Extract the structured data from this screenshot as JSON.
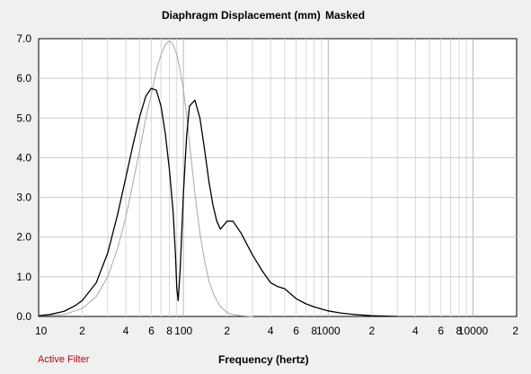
{
  "chart_data": {
    "type": "line",
    "title": "Diaphragm Displacement (mm)",
    "title_suffix": "Masked",
    "xlabel": "Frequency (hertz)",
    "ylabel": "",
    "xscale": "log",
    "xlim": [
      10,
      20000
    ],
    "ylim": [
      0,
      7
    ],
    "grid": true,
    "y_ticks": [
      {
        "value": 0,
        "label": "0.0"
      },
      {
        "value": 1,
        "label": "1.0"
      },
      {
        "value": 2,
        "label": "2.0"
      },
      {
        "value": 3,
        "label": "3.0"
      },
      {
        "value": 4,
        "label": "4.0"
      },
      {
        "value": 5,
        "label": "5.0"
      },
      {
        "value": 6,
        "label": "6.0"
      },
      {
        "value": 7,
        "label": "7.0"
      }
    ],
    "x_ticks": [
      {
        "value": 10,
        "label": "10"
      },
      {
        "value": 20,
        "label": "2"
      },
      {
        "value": 40,
        "label": "4"
      },
      {
        "value": 60,
        "label": "6"
      },
      {
        "value": 80,
        "label": "8"
      },
      {
        "value": 100,
        "label": "100"
      },
      {
        "value": 200,
        "label": "2"
      },
      {
        "value": 400,
        "label": "4"
      },
      {
        "value": 600,
        "label": "6"
      },
      {
        "value": 800,
        "label": "8"
      },
      {
        "value": 1000,
        "label": "1000"
      },
      {
        "value": 2000,
        "label": "2"
      },
      {
        "value": 4000,
        "label": "4"
      },
      {
        "value": 6000,
        "label": "6"
      },
      {
        "value": 8000,
        "label": "8"
      },
      {
        "value": 10000,
        "label": "10000"
      },
      {
        "value": 20000,
        "label": "2"
      }
    ],
    "series": [
      {
        "color": "#000000",
        "x": [
          10,
          12,
          15,
          18,
          20,
          25,
          30,
          35,
          40,
          45,
          50,
          55,
          60,
          65,
          70,
          75,
          80,
          85,
          88,
          90,
          92,
          95,
          100,
          105,
          110,
          120,
          130,
          140,
          150,
          160,
          170,
          180,
          200,
          220,
          250,
          300,
          350,
          400,
          450,
          500,
          600,
          700,
          800,
          1000,
          1200,
          1500,
          2000,
          3000
        ],
        "y": [
          0.02,
          0.05,
          0.13,
          0.28,
          0.4,
          0.85,
          1.6,
          2.55,
          3.5,
          4.35,
          5.05,
          5.55,
          5.75,
          5.7,
          5.3,
          4.6,
          3.7,
          2.6,
          1.6,
          0.7,
          0.4,
          1.2,
          3.1,
          4.5,
          5.3,
          5.45,
          5.0,
          4.2,
          3.4,
          2.8,
          2.4,
          2.2,
          2.4,
          2.4,
          2.1,
          1.55,
          1.15,
          0.85,
          0.75,
          0.7,
          0.45,
          0.32,
          0.24,
          0.14,
          0.09,
          0.05,
          0.02,
          0.0
        ]
      },
      {
        "color": "#a8a8a8",
        "x": [
          10,
          15,
          20,
          25,
          30,
          35,
          40,
          45,
          50,
          55,
          60,
          65,
          70,
          75,
          80,
          85,
          90,
          95,
          100,
          105,
          110,
          120,
          130,
          140,
          150,
          160,
          170,
          180,
          200,
          220,
          250,
          300
        ],
        "y": [
          0.01,
          0.05,
          0.2,
          0.5,
          1.0,
          1.7,
          2.5,
          3.4,
          4.2,
          5.0,
          5.6,
          6.2,
          6.6,
          6.85,
          6.95,
          6.85,
          6.6,
          6.2,
          5.7,
          5.1,
          4.4,
          3.1,
          2.1,
          1.4,
          0.9,
          0.6,
          0.4,
          0.25,
          0.1,
          0.05,
          0.02,
          0.0
        ]
      }
    ]
  },
  "footer": {
    "status_text": "Active Filter",
    "status_color": "#cc0000"
  }
}
